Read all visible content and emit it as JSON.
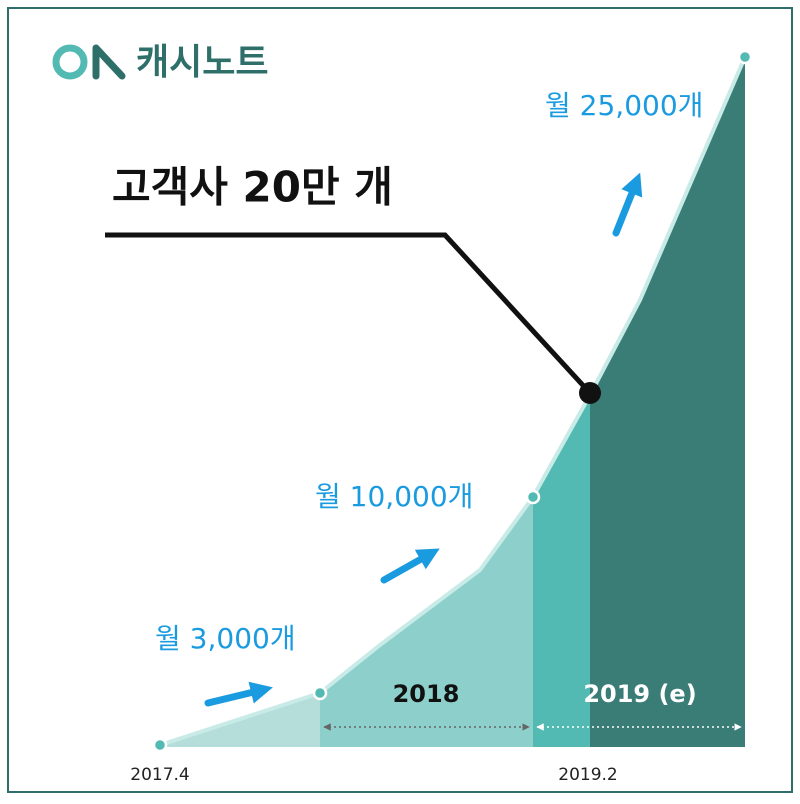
{
  "logo": {
    "text": "캐시노트"
  },
  "headline": "고객사 20만 개",
  "milestones": [
    "월 3,000개",
    "월 10,000개",
    "월 25,000개"
  ],
  "periods": [
    "2018",
    "2019 (e)"
  ],
  "dates": [
    "2017.4",
    "2019.2"
  ]
}
